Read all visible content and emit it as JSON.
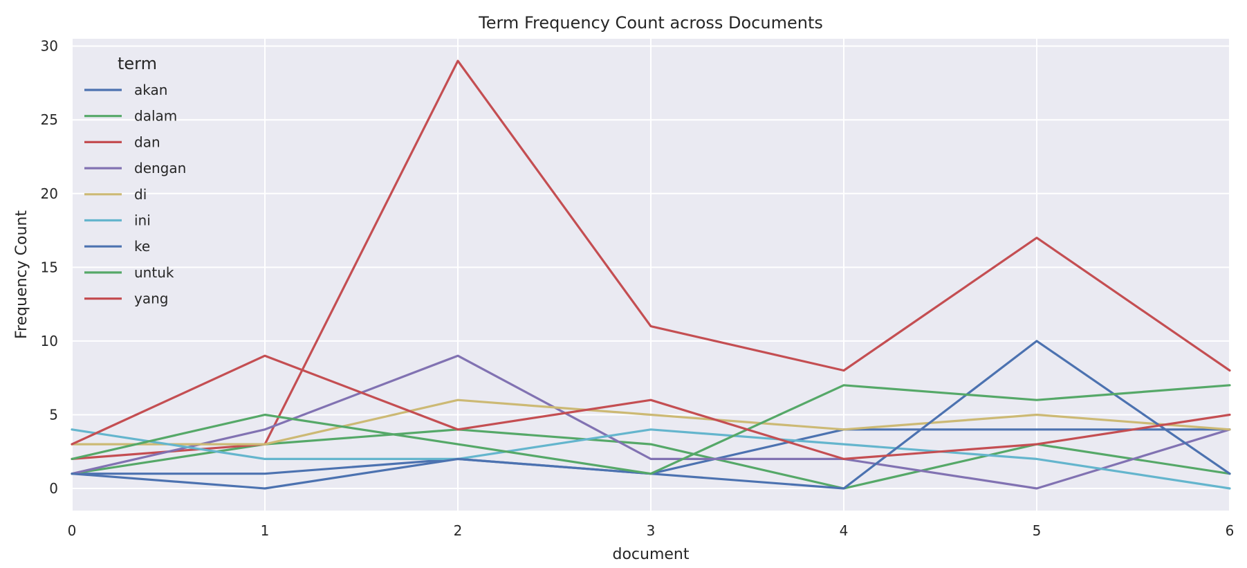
{
  "chart_data": {
    "type": "line",
    "title": "Term Frequency Count across Documents",
    "xlabel": "document",
    "ylabel": "Frequency Count",
    "x": [
      0,
      1,
      2,
      3,
      4,
      5,
      6
    ],
    "xlim": [
      0,
      6
    ],
    "ylim": [
      -1.5,
      30.5
    ],
    "xticks": [
      0,
      1,
      2,
      3,
      4,
      5,
      6
    ],
    "yticks": [
      0,
      5,
      10,
      15,
      20,
      25,
      30
    ],
    "grid": true,
    "legend": {
      "title": "term",
      "placement": "top-left"
    },
    "series": [
      {
        "name": "akan",
        "color": "#4c72b0",
        "values": [
          1,
          1,
          2,
          1,
          4,
          4,
          4
        ]
      },
      {
        "name": "dalam",
        "color": "#55a868",
        "values": [
          1,
          3,
          4,
          3,
          0,
          3,
          1
        ]
      },
      {
        "name": "dan",
        "color": "#c44e52",
        "values": [
          2,
          3,
          29,
          11,
          8,
          17,
          8
        ]
      },
      {
        "name": "dengan",
        "color": "#8172b2",
        "values": [
          1,
          4,
          9,
          2,
          2,
          0,
          4
        ]
      },
      {
        "name": "di",
        "color": "#ccb974",
        "values": [
          3,
          3,
          6,
          5,
          4,
          5,
          4
        ]
      },
      {
        "name": "ini",
        "color": "#64b5cd",
        "values": [
          4,
          2,
          2,
          4,
          3,
          2,
          0
        ]
      },
      {
        "name": "ke",
        "color": "#4c72b0",
        "values": [
          1,
          0,
          2,
          1,
          0,
          10,
          1
        ]
      },
      {
        "name": "untuk",
        "color": "#55a868",
        "values": [
          2,
          5,
          3,
          1,
          7,
          6,
          7
        ]
      },
      {
        "name": "yang",
        "color": "#c44e52",
        "values": [
          3,
          9,
          4,
          6,
          2,
          3,
          5
        ]
      }
    ],
    "colors": {
      "plot_background": "#eaeaf2",
      "grid": "#ffffff",
      "text": "#262626"
    }
  }
}
